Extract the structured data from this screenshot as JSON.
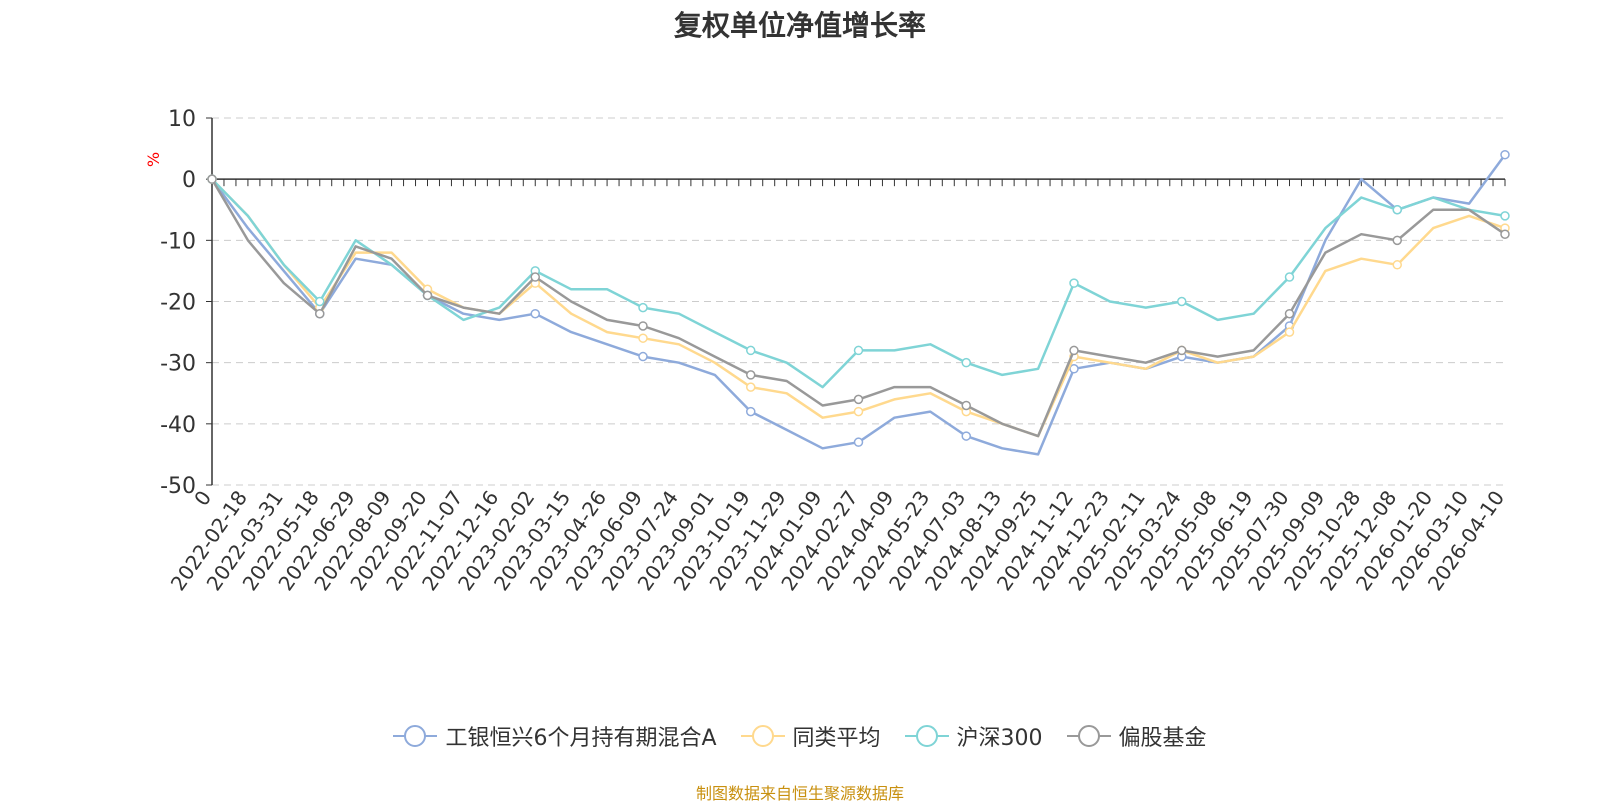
{
  "chart_title": "复权单位净值增长率",
  "unit_label": "%",
  "source_text": "制图数据来自恒生聚源数据库",
  "chart_data": {
    "type": "line",
    "title": "复权单位净值增长率",
    "ylabel": "%",
    "ylim": [
      -50,
      10
    ],
    "yticks": [
      10,
      0,
      -10,
      -20,
      -30,
      -40,
      -50
    ],
    "ytick_labels": [
      "10",
      "0",
      "-10",
      "-20",
      "-30",
      "-40",
      "-50"
    ],
    "categories": [
      "0",
      "2022-02-18",
      "2022-03-31",
      "2022-05-18",
      "2022-06-29",
      "2022-08-09",
      "2022-09-20",
      "2022-11-07",
      "2022-12-16",
      "2023-02-02",
      "2023-03-15",
      "2023-04-26",
      "2023-06-09",
      "2023-07-24",
      "2023-09-01",
      "2023-10-19",
      "2023-11-29",
      "2024-01-09",
      "2024-02-27",
      "2024-04-09",
      "2024-05-23",
      "2024-07-03",
      "2024-08-13",
      "2024-09-25",
      "2024-11-12",
      "2024-12-23",
      "2025-02-11",
      "2025-03-24",
      "2025-05-08",
      "2025-06-19",
      "2025-07-30",
      "2025-09-09",
      "2025-10-28",
      "2025-12-08",
      "2026-01-20",
      "2026-03-10",
      "2026-04-10"
    ],
    "series": [
      {
        "name": "工银恒兴6个月持有期混合A",
        "color": "#8eaadb",
        "values": [
          0,
          -8,
          -15,
          -22,
          -13,
          -14,
          -19,
          -22,
          -23,
          -22,
          -25,
          -27,
          -29,
          -30,
          -32,
          -38,
          -41,
          -44,
          -43,
          -39,
          -38,
          -42,
          -44,
          -45,
          -31,
          -30,
          -31,
          -29,
          -30,
          -29,
          -24,
          -10,
          0,
          -5,
          -3,
          -4,
          4
        ]
      },
      {
        "name": "同类平均",
        "color": "#ffd98e",
        "values": [
          0,
          -6,
          -14,
          -21,
          -12,
          -12,
          -18,
          -21,
          -22,
          -17,
          -22,
          -25,
          -26,
          -27,
          -30,
          -34,
          -35,
          -39,
          -38,
          -36,
          -35,
          -38,
          -40,
          -42,
          -29,
          -30,
          -31,
          -28,
          -30,
          -29,
          -25,
          -15,
          -13,
          -14,
          -8,
          -6,
          -8
        ]
      },
      {
        "name": "沪深300",
        "color": "#7fd4d6",
        "values": [
          0,
          -6,
          -14,
          -20,
          -10,
          -14,
          -19,
          -23,
          -21,
          -15,
          -18,
          -18,
          -21,
          -22,
          -25,
          -28,
          -30,
          -34,
          -28,
          -28,
          -27,
          -30,
          -32,
          -31,
          -17,
          -20,
          -21,
          -20,
          -23,
          -22,
          -16,
          -8,
          -3,
          -5,
          -3,
          -5,
          -6
        ]
      },
      {
        "name": "偏股基金",
        "color": "#999999",
        "values": [
          0,
          -10,
          -17,
          -22,
          -11,
          -13,
          -19,
          -21,
          -22,
          -16,
          -20,
          -23,
          -24,
          -26,
          -29,
          -32,
          -33,
          -37,
          -36,
          -34,
          -34,
          -37,
          -40,
          -42,
          -28,
          -29,
          -30,
          -28,
          -29,
          -28,
          -22,
          -12,
          -9,
          -10,
          -5,
          -5,
          -9
        ]
      }
    ]
  }
}
